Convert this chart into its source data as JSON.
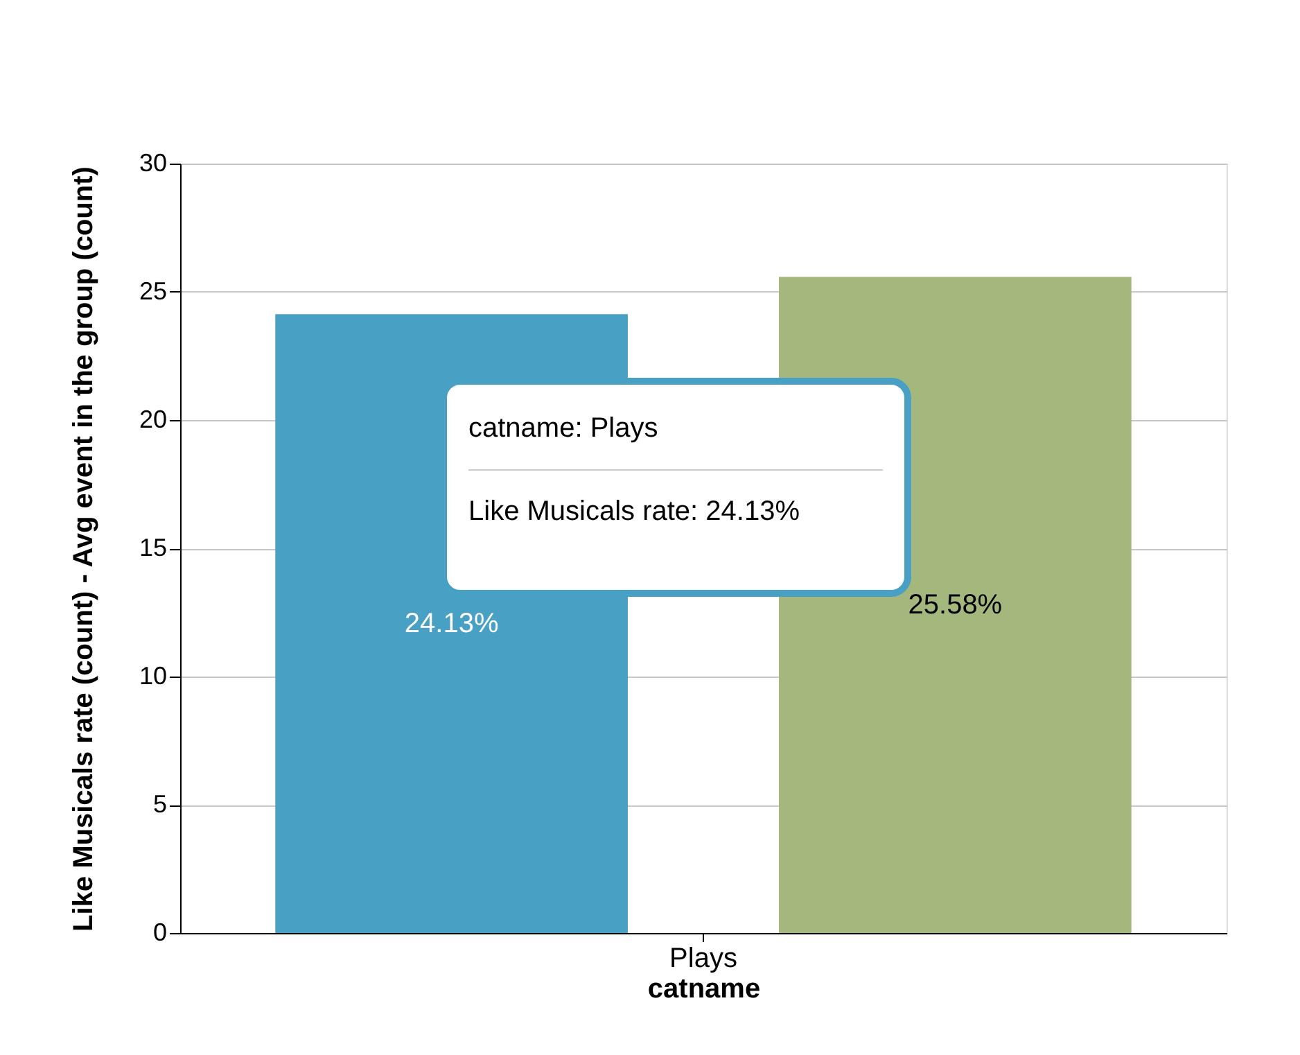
{
  "chart_data": {
    "type": "bar",
    "xlabel": "catname",
    "ylabel": "Like Musicals rate (count) - Avg event in the group (count)",
    "categories": [
      "Plays"
    ],
    "series": [
      {
        "color": "#48a0c5",
        "values": [
          24.13
        ],
        "value_labels": [
          "24.13%"
        ]
      },
      {
        "color": "#a4b77c",
        "values": [
          25.58
        ],
        "value_labels": [
          "25.58%"
        ]
      }
    ],
    "ylim": [
      0,
      30
    ],
    "yticks": [
      0,
      5,
      10,
      15,
      20,
      25,
      30
    ],
    "grid": "y",
    "annotations": [
      "catname: Plays",
      "Like Musicals rate: 24.13%"
    ]
  }
}
